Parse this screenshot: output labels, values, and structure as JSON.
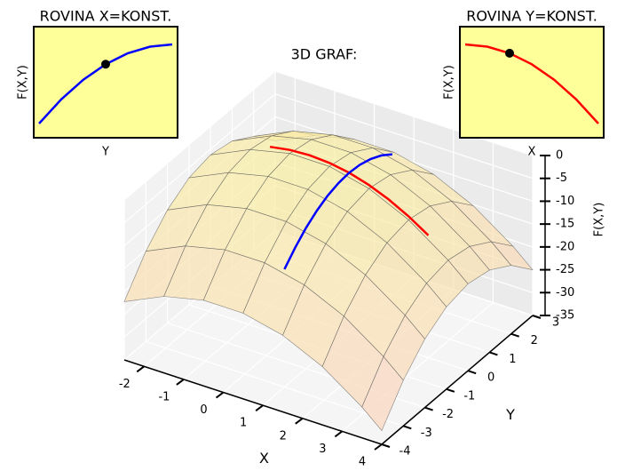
{
  "chart_data": [
    {
      "type": "surface",
      "title": "3D GRAF:",
      "xlabel": "X",
      "ylabel": "Y",
      "zlabel": "F(X,Y)",
      "x": [
        -2.5,
        -1.5,
        -0.5,
        0.5,
        1.5,
        2.5,
        3.5,
        4
      ],
      "y": [
        -4,
        -3,
        -2,
        -1,
        0,
        1,
        2,
        3
      ],
      "z": [
        [
          -22.25,
          -18.25,
          -16.25,
          -16.25,
          -18.25,
          -22.25,
          -28.25,
          -32
        ],
        [
          -15.25,
          -11.25,
          -9.25,
          -9.25,
          -11.25,
          -15.25,
          -21.25,
          -25
        ],
        [
          -10.25,
          -6.25,
          -4.25,
          -4.25,
          -6.25,
          -10.25,
          -16.25,
          -20
        ],
        [
          -7.25,
          -3.25,
          -1.25,
          -1.25,
          -3.25,
          -7.25,
          -13.25,
          -17
        ],
        [
          -6.25,
          -2.25,
          -0.25,
          -0.25,
          -2.25,
          -6.25,
          -12.25,
          -16
        ],
        [
          -7.25,
          -3.25,
          -1.25,
          -1.25,
          -3.25,
          -7.25,
          -13.25,
          -17
        ],
        [
          -10.25,
          -6.25,
          -4.25,
          -4.25,
          -6.25,
          -10.25,
          -16.25,
          -20
        ],
        [
          -15.25,
          -11.25,
          -9.25,
          -9.25,
          -11.25,
          -15.25,
          -21.25,
          -25
        ]
      ],
      "lines": [
        {
          "color": "#ff0000",
          "x": [
            -1,
            -0.5,
            0,
            0.5,
            1,
            1.5,
            2,
            2.5,
            3
          ],
          "y": [
            0,
            0,
            0,
            0,
            0,
            0,
            0,
            0,
            0
          ],
          "z": [
            -1,
            -0.25,
            0,
            -0.25,
            -1,
            -2.25,
            -4,
            -6.25,
            -9
          ]
        },
        {
          "color": "#0000ff",
          "x": [
            1,
            1,
            1,
            1,
            1,
            1,
            1,
            1,
            1,
            1,
            1
          ],
          "y": [
            -3,
            -2.5,
            -2,
            -1.5,
            -1,
            -0.5,
            0,
            0.5,
            1,
            1.5,
            2
          ],
          "z": [
            -10,
            -7.25,
            -5,
            -3.25,
            -2,
            -1.25,
            -1,
            -1.25,
            -2,
            -3.25,
            -5
          ]
        }
      ],
      "xlim": [
        -2.5,
        4
      ],
      "ylim": [
        -4,
        3
      ],
      "zlim": [
        -35,
        0
      ],
      "xticks": [
        -2,
        -1,
        0,
        1,
        2,
        3,
        4
      ],
      "yticks": [
        -4,
        -3,
        -2,
        -1,
        0,
        1,
        2,
        3
      ],
      "zticks": [
        0,
        -5,
        -10,
        -15,
        -20,
        -25,
        -30,
        -35
      ],
      "grid": true
    },
    {
      "type": "line",
      "title": "ROVINA X=KONST.",
      "xlabel": "Y",
      "ylabel": "F(X,Y)",
      "color": "#0000ff",
      "x": [
        -3,
        -2.5,
        -2,
        -1.5,
        -1,
        -0.5,
        0
      ],
      "values": [
        -10,
        -7.25,
        -5,
        -3.25,
        -2,
        -1.25,
        -1
      ],
      "marker_x": -1.5,
      "marker_y": -3.25,
      "xlim": [
        -3,
        0
      ],
      "ylim": [
        -10,
        -1
      ]
    },
    {
      "type": "line",
      "title": "ROVINA Y=KONST.",
      "xlabel": "X",
      "ylabel": "F(X,Y)",
      "color": "#ff0000",
      "x": [
        0,
        0.5,
        1,
        1.5,
        2,
        2.5,
        3
      ],
      "values": [
        0,
        -0.25,
        -1,
        -2.25,
        -4,
        -6.25,
        -9
      ],
      "marker_x": 1,
      "marker_y": -1,
      "xlim": [
        0,
        3
      ],
      "ylim": [
        -9,
        0
      ]
    }
  ]
}
